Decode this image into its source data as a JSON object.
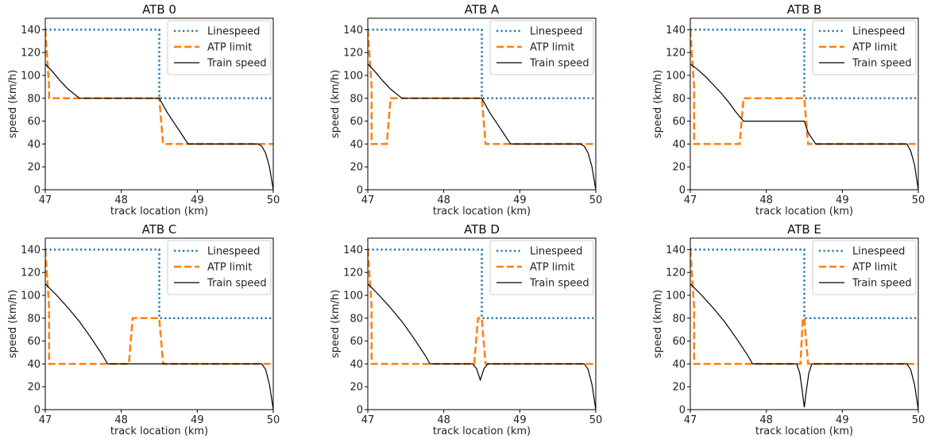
{
  "figure": {
    "colors": {
      "linespeed": "#1f77b4",
      "atp": "#ff7f0e",
      "train": "#000000",
      "axes": "#000000",
      "background": "#ffffff"
    }
  },
  "chart_data": [
    {
      "type": "line",
      "title": "ATB 0",
      "xlabel": "track location (km)",
      "ylabel": "speed (km/h)",
      "xlim": [
        47,
        50
      ],
      "ylim": [
        0,
        150
      ],
      "xticks": [
        47,
        48,
        49,
        50
      ],
      "xtick_labels": [
        "47",
        "48",
        "49",
        "50"
      ],
      "yticks": [
        0,
        20,
        40,
        60,
        80,
        100,
        120,
        140
      ],
      "ytick_labels": [
        "0",
        "20",
        "40",
        "60",
        "80",
        "100",
        "120",
        "140"
      ],
      "grid": false,
      "legend": "top-right",
      "series": [
        {
          "name": "Linespeed",
          "style": "dotted",
          "color": "#1f77b4",
          "x": [
            47,
            48.5,
            48.5,
            50
          ],
          "y": [
            140,
            140,
            80,
            80
          ]
        },
        {
          "name": "ATP limit",
          "style": "dashed",
          "color": "#ff7f0e",
          "x": [
            47,
            47.05,
            47.05,
            48.5,
            48.55,
            50
          ],
          "y": [
            140,
            90,
            80,
            80,
            40,
            40
          ]
        },
        {
          "name": "Train speed",
          "style": "solid",
          "color": "#000000",
          "x": [
            47,
            47.1,
            47.2,
            47.3,
            47.45,
            48.5,
            48.6,
            48.7,
            48.8,
            48.88,
            49.8,
            49.85,
            49.9,
            49.95,
            50
          ],
          "y": [
            110,
            103,
            95,
            88,
            80,
            80,
            68,
            58,
            48,
            40,
            40,
            38,
            32,
            20,
            0
          ]
        }
      ]
    },
    {
      "type": "line",
      "title": "ATB A",
      "xlabel": "track location (km)",
      "ylabel": "speed (km/h)",
      "xlim": [
        47,
        50
      ],
      "ylim": [
        0,
        150
      ],
      "xticks": [
        47,
        48,
        49,
        50
      ],
      "xtick_labels": [
        "47",
        "48",
        "49",
        "50"
      ],
      "yticks": [
        0,
        20,
        40,
        60,
        80,
        100,
        120,
        140
      ],
      "ytick_labels": [
        "0",
        "20",
        "40",
        "60",
        "80",
        "100",
        "120",
        "140"
      ],
      "grid": false,
      "legend": "top-right",
      "series": [
        {
          "name": "Linespeed",
          "style": "dotted",
          "color": "#1f77b4",
          "x": [
            47,
            48.5,
            48.5,
            50
          ],
          "y": [
            140,
            140,
            80,
            80
          ]
        },
        {
          "name": "ATP limit",
          "style": "dashed",
          "color": "#ff7f0e",
          "x": [
            47,
            47.05,
            47.05,
            47.25,
            47.3,
            48.5,
            48.55,
            50
          ],
          "y": [
            140,
            90,
            40,
            40,
            80,
            80,
            40,
            40
          ]
        },
        {
          "name": "Train speed",
          "style": "solid",
          "color": "#000000",
          "x": [
            47,
            47.1,
            47.2,
            47.3,
            47.45,
            48.5,
            48.6,
            48.7,
            48.8,
            48.88,
            49.8,
            49.85,
            49.9,
            49.95,
            50
          ],
          "y": [
            110,
            103,
            95,
            88,
            80,
            80,
            68,
            58,
            48,
            40,
            40,
            38,
            32,
            20,
            0
          ]
        }
      ]
    },
    {
      "type": "line",
      "title": "ATB B",
      "xlabel": "track location (km)",
      "ylabel": "speed (km/h)",
      "xlim": [
        47,
        50
      ],
      "ylim": [
        0,
        150
      ],
      "xticks": [
        47,
        48,
        49,
        50
      ],
      "xtick_labels": [
        "47",
        "48",
        "49",
        "50"
      ],
      "yticks": [
        0,
        20,
        40,
        60,
        80,
        100,
        120,
        140
      ],
      "ytick_labels": [
        "0",
        "20",
        "40",
        "60",
        "80",
        "100",
        "120",
        "140"
      ],
      "grid": false,
      "legend": "top-right",
      "series": [
        {
          "name": "Linespeed",
          "style": "dotted",
          "color": "#1f77b4",
          "x": [
            47,
            48.5,
            48.5,
            50
          ],
          "y": [
            140,
            140,
            80,
            80
          ]
        },
        {
          "name": "ATP limit",
          "style": "dashed",
          "color": "#ff7f0e",
          "x": [
            47,
            47.05,
            47.05,
            47.65,
            47.7,
            48.5,
            48.55,
            50
          ],
          "y": [
            140,
            90,
            40,
            40,
            80,
            80,
            40,
            40
          ]
        },
        {
          "name": "Train speed",
          "style": "solid",
          "color": "#000000",
          "x": [
            47,
            47.1,
            47.2,
            47.3,
            47.4,
            47.5,
            47.6,
            47.7,
            48.5,
            48.55,
            48.65,
            49.85,
            49.9,
            49.95,
            50
          ],
          "y": [
            110,
            105,
            99,
            92,
            85,
            77,
            68,
            60,
            60,
            50,
            40,
            40,
            34,
            22,
            0
          ]
        }
      ]
    },
    {
      "type": "line",
      "title": "ATB C",
      "xlabel": "track location (km)",
      "ylabel": "speed (km/h)",
      "xlim": [
        47,
        50
      ],
      "ylim": [
        0,
        150
      ],
      "xticks": [
        47,
        48,
        49,
        50
      ],
      "xtick_labels": [
        "47",
        "48",
        "49",
        "50"
      ],
      "yticks": [
        0,
        20,
        40,
        60,
        80,
        100,
        120,
        140
      ],
      "ytick_labels": [
        "0",
        "20",
        "40",
        "60",
        "80",
        "100",
        "120",
        "140"
      ],
      "grid": false,
      "legend": "top-right",
      "series": [
        {
          "name": "Linespeed",
          "style": "dotted",
          "color": "#1f77b4",
          "x": [
            47,
            48.5,
            48.5,
            50
          ],
          "y": [
            140,
            140,
            80,
            80
          ]
        },
        {
          "name": "ATP limit",
          "style": "dashed",
          "color": "#ff7f0e",
          "x": [
            47,
            47.05,
            47.05,
            48.1,
            48.15,
            48.5,
            48.55,
            50
          ],
          "y": [
            140,
            90,
            40,
            40,
            80,
            80,
            40,
            40
          ]
        },
        {
          "name": "Train speed",
          "style": "solid",
          "color": "#000000",
          "x": [
            47,
            47.15,
            47.3,
            47.45,
            47.6,
            47.75,
            47.82,
            49.85,
            49.9,
            49.95,
            50
          ],
          "y": [
            110,
            100,
            89,
            77,
            63,
            48,
            40,
            40,
            35,
            22,
            0
          ]
        }
      ]
    },
    {
      "type": "line",
      "title": "ATB D",
      "xlabel": "track location (km)",
      "ylabel": "speed (km/h)",
      "xlim": [
        47,
        50
      ],
      "ylim": [
        0,
        150
      ],
      "xticks": [
        47,
        48,
        49,
        50
      ],
      "xtick_labels": [
        "47",
        "48",
        "49",
        "50"
      ],
      "yticks": [
        0,
        20,
        40,
        60,
        80,
        100,
        120,
        140
      ],
      "ytick_labels": [
        "0",
        "20",
        "40",
        "60",
        "80",
        "100",
        "120",
        "140"
      ],
      "grid": false,
      "legend": "top-right",
      "series": [
        {
          "name": "Linespeed",
          "style": "dotted",
          "color": "#1f77b4",
          "x": [
            47,
            48.5,
            48.5,
            50
          ],
          "y": [
            140,
            140,
            80,
            80
          ]
        },
        {
          "name": "ATP limit",
          "style": "dashed",
          "color": "#ff7f0e",
          "x": [
            47,
            47.05,
            47.05,
            48.4,
            48.45,
            48.5,
            48.55,
            50
          ],
          "y": [
            140,
            90,
            40,
            40,
            80,
            80,
            40,
            40
          ]
        },
        {
          "name": "Train speed",
          "style": "solid",
          "color": "#000000",
          "x": [
            47,
            47.15,
            47.3,
            47.45,
            47.6,
            47.75,
            47.82,
            48.38,
            48.43,
            48.48,
            48.53,
            48.58,
            49.85,
            49.9,
            49.95,
            50
          ],
          "y": [
            110,
            100,
            89,
            77,
            63,
            48,
            40,
            40,
            36,
            26,
            36,
            40,
            40,
            35,
            22,
            0
          ]
        }
      ]
    },
    {
      "type": "line",
      "title": "ATB E",
      "xlabel": "track location (km)",
      "ylabel": "speed (km/h)",
      "xlim": [
        47,
        50
      ],
      "ylim": [
        0,
        150
      ],
      "xticks": [
        47,
        48,
        49,
        50
      ],
      "xtick_labels": [
        "47",
        "48",
        "49",
        "50"
      ],
      "yticks": [
        0,
        20,
        40,
        60,
        80,
        100,
        120,
        140
      ],
      "ytick_labels": [
        "0",
        "20",
        "40",
        "60",
        "80",
        "100",
        "120",
        "140"
      ],
      "grid": false,
      "legend": "top-right",
      "series": [
        {
          "name": "Linespeed",
          "style": "dotted",
          "color": "#1f77b4",
          "x": [
            47,
            48.5,
            48.5,
            50
          ],
          "y": [
            140,
            140,
            80,
            80
          ]
        },
        {
          "name": "ATP limit",
          "style": "dashed",
          "color": "#ff7f0e",
          "x": [
            47,
            47.05,
            47.05,
            48.45,
            48.48,
            48.5,
            48.55,
            50
          ],
          "y": [
            140,
            90,
            40,
            40,
            80,
            80,
            40,
            40
          ]
        },
        {
          "name": "Train speed",
          "style": "solid",
          "color": "#000000",
          "x": [
            47,
            47.15,
            47.3,
            47.45,
            47.6,
            47.75,
            47.82,
            48.4,
            48.44,
            48.47,
            48.5,
            48.53,
            48.56,
            48.6,
            49.85,
            49.9,
            49.95,
            50
          ],
          "y": [
            110,
            100,
            89,
            77,
            63,
            48,
            40,
            40,
            32,
            18,
            2,
            18,
            32,
            40,
            40,
            35,
            22,
            0
          ]
        }
      ]
    }
  ]
}
